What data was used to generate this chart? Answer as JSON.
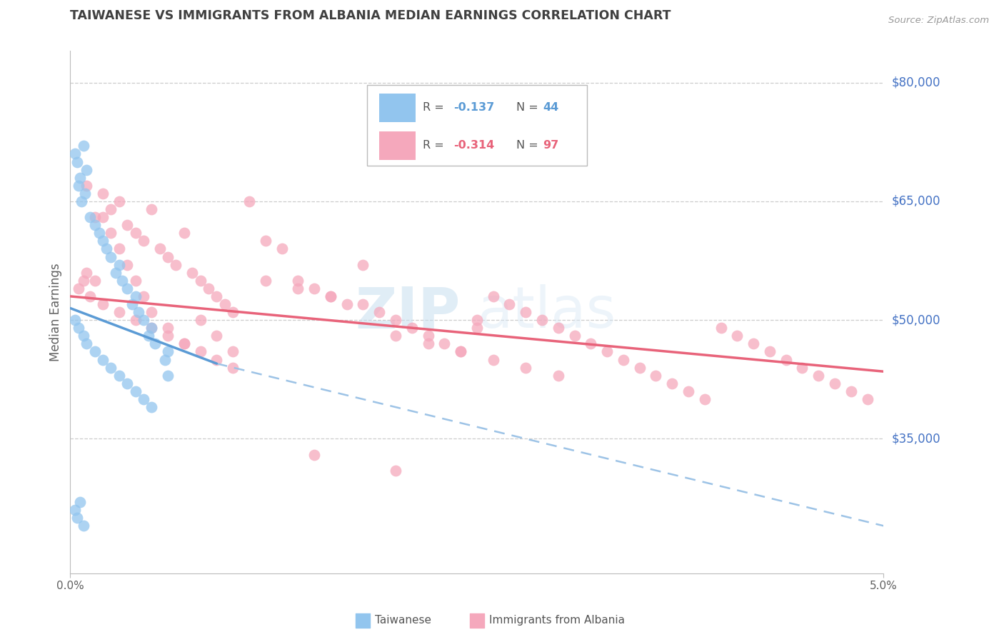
{
  "title": "TAIWANESE VS IMMIGRANTS FROM ALBANIA MEDIAN EARNINGS CORRELATION CHART",
  "source": "Source: ZipAtlas.com",
  "ylabel": "Median Earnings",
  "ytick_labels": [
    "$35,000",
    "$50,000",
    "$65,000",
    "$80,000"
  ],
  "ytick_values": [
    35000,
    50000,
    65000,
    80000
  ],
  "xmin": 0.0,
  "xmax": 0.05,
  "ymin": 18000,
  "ymax": 84000,
  "watermark_zip": "ZIP",
  "watermark_atlas": "atlas",
  "legend_label1": "Taiwanese",
  "legend_label2": "Immigrants from Albania",
  "color_blue_scatter": "#92C5EE",
  "color_pink_scatter": "#F5A8BC",
  "color_blue_line": "#5B9BD5",
  "color_pink_line": "#E8637A",
  "color_blue_dashed": "#9DC3E6",
  "color_ytick": "#4472C4",
  "color_title": "#404040",
  "color_source": "#999999",
  "scatter_alpha": 0.75,
  "scatter_size": 130,
  "taiwanese_x": [
    0.0003,
    0.0004,
    0.0006,
    0.0008,
    0.001,
    0.0005,
    0.0007,
    0.0009,
    0.0012,
    0.0015,
    0.002,
    0.0018,
    0.0022,
    0.0025,
    0.003,
    0.0028,
    0.0032,
    0.0035,
    0.004,
    0.0038,
    0.0042,
    0.0045,
    0.005,
    0.0048,
    0.0052,
    0.006,
    0.0058,
    0.0003,
    0.0005,
    0.0008,
    0.001,
    0.0015,
    0.002,
    0.0025,
    0.003,
    0.0035,
    0.004,
    0.0045,
    0.005,
    0.006,
    0.0003,
    0.0004,
    0.0006,
    0.0008
  ],
  "taiwanese_y": [
    71000,
    70000,
    68000,
    72000,
    69000,
    67000,
    65000,
    66000,
    63000,
    62000,
    60000,
    61000,
    59000,
    58000,
    57000,
    56000,
    55000,
    54000,
    53000,
    52000,
    51000,
    50000,
    49000,
    48000,
    47000,
    46000,
    45000,
    50000,
    49000,
    48000,
    47000,
    46000,
    45000,
    44000,
    43000,
    42000,
    41000,
    40000,
    39000,
    43000,
    26000,
    25000,
    27000,
    24000
  ],
  "albania_x": [
    0.0005,
    0.001,
    0.0008,
    0.0015,
    0.002,
    0.0025,
    0.003,
    0.0035,
    0.004,
    0.0045,
    0.005,
    0.0055,
    0.006,
    0.0065,
    0.007,
    0.0075,
    0.008,
    0.0085,
    0.009,
    0.0095,
    0.01,
    0.011,
    0.012,
    0.013,
    0.014,
    0.015,
    0.016,
    0.017,
    0.018,
    0.019,
    0.02,
    0.021,
    0.022,
    0.023,
    0.024,
    0.025,
    0.026,
    0.027,
    0.028,
    0.029,
    0.03,
    0.031,
    0.032,
    0.033,
    0.034,
    0.035,
    0.036,
    0.037,
    0.038,
    0.039,
    0.04,
    0.041,
    0.042,
    0.043,
    0.044,
    0.045,
    0.046,
    0.047,
    0.048,
    0.049,
    0.0012,
    0.002,
    0.003,
    0.004,
    0.005,
    0.006,
    0.007,
    0.008,
    0.009,
    0.01,
    0.012,
    0.014,
    0.016,
    0.018,
    0.02,
    0.022,
    0.024,
    0.026,
    0.028,
    0.03,
    0.001,
    0.0015,
    0.002,
    0.0025,
    0.003,
    0.0035,
    0.004,
    0.0045,
    0.005,
    0.006,
    0.007,
    0.008,
    0.009,
    0.01,
    0.015,
    0.02,
    0.025
  ],
  "albania_y": [
    54000,
    67000,
    55000,
    63000,
    66000,
    64000,
    65000,
    62000,
    61000,
    60000,
    64000,
    59000,
    58000,
    57000,
    61000,
    56000,
    55000,
    54000,
    53000,
    52000,
    51000,
    65000,
    60000,
    59000,
    55000,
    54000,
    53000,
    52000,
    57000,
    51000,
    50000,
    49000,
    48000,
    47000,
    46000,
    50000,
    53000,
    52000,
    51000,
    50000,
    49000,
    48000,
    47000,
    46000,
    45000,
    44000,
    43000,
    42000,
    41000,
    40000,
    49000,
    48000,
    47000,
    46000,
    45000,
    44000,
    43000,
    42000,
    41000,
    40000,
    53000,
    52000,
    51000,
    50000,
    49000,
    48000,
    47000,
    46000,
    45000,
    44000,
    55000,
    54000,
    53000,
    52000,
    48000,
    47000,
    46000,
    45000,
    44000,
    43000,
    56000,
    55000,
    63000,
    61000,
    59000,
    57000,
    55000,
    53000,
    51000,
    49000,
    47000,
    50000,
    48000,
    46000,
    33000,
    31000,
    49000
  ],
  "taiwan_line_x": [
    0.0,
    0.009
  ],
  "taiwan_line_y": [
    51500,
    44500
  ],
  "albania_line_x": [
    0.0,
    0.05
  ],
  "albania_line_y": [
    53000,
    43500
  ],
  "dashed_line_x": [
    0.009,
    0.05
  ],
  "dashed_line_y": [
    44500,
    24000
  ]
}
